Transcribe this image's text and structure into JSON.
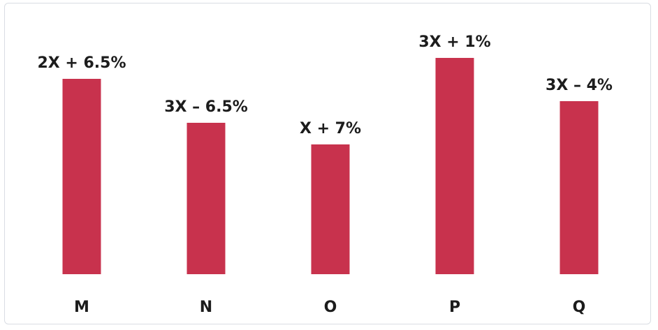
{
  "chart_data": {
    "type": "bar",
    "categories": [
      "M",
      "N",
      "O",
      "P",
      "Q"
    ],
    "values": [
      280,
      217,
      186,
      310,
      248
    ],
    "data_labels": [
      "2X + 6.5%",
      "3X – 6.5%",
      "X + 7%",
      "3X + 1%",
      "3X – 4%"
    ],
    "title": "",
    "xlabel": "",
    "ylabel": "",
    "ylim": [
      0,
      310
    ],
    "grid": false,
    "legend": "none",
    "bar_color": "#c8324d"
  }
}
